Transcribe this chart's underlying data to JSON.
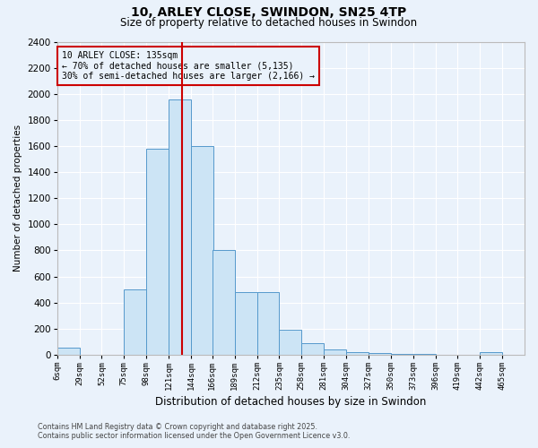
{
  "title_line1": "10, ARLEY CLOSE, SWINDON, SN25 4TP",
  "title_line2": "Size of property relative to detached houses in Swindon",
  "xlabel": "Distribution of detached houses by size in Swindon",
  "ylabel": "Number of detached properties",
  "annotation_line1": "10 ARLEY CLOSE: 135sqm",
  "annotation_line2": "← 70% of detached houses are smaller (5,135)",
  "annotation_line3": "30% of semi-detached houses are larger (2,166) →",
  "footer_line1": "Contains HM Land Registry data © Crown copyright and database right 2025.",
  "footer_line2": "Contains public sector information licensed under the Open Government Licence v3.0.",
  "property_size": 135,
  "bar_color": "#cce4f5",
  "bar_edgecolor": "#5599cc",
  "redline_color": "#cc0000",
  "annotation_edgecolor": "#cc0000",
  "background_color": "#eaf2fb",
  "grid_color": "#ffffff",
  "categories": [
    "6sqm",
    "29sqm",
    "52sqm",
    "75sqm",
    "98sqm",
    "121sqm",
    "144sqm",
    "166sqm",
    "189sqm",
    "212sqm",
    "235sqm",
    "258sqm",
    "281sqm",
    "304sqm",
    "327sqm",
    "350sqm",
    "373sqm",
    "396sqm",
    "419sqm",
    "442sqm",
    "465sqm"
  ],
  "bin_edges": [
    6,
    29,
    52,
    75,
    98,
    121,
    144,
    166,
    189,
    212,
    235,
    258,
    281,
    304,
    327,
    350,
    373,
    396,
    419,
    442,
    465
  ],
  "bin_width": 23,
  "values": [
    55,
    0,
    0,
    500,
    1580,
    1960,
    1600,
    800,
    480,
    480,
    190,
    90,
    40,
    20,
    10,
    5,
    3,
    2,
    0,
    20,
    0
  ],
  "ylim": [
    0,
    2400
  ],
  "yticks": [
    0,
    200,
    400,
    600,
    800,
    1000,
    1200,
    1400,
    1600,
    1800,
    2000,
    2200,
    2400
  ]
}
